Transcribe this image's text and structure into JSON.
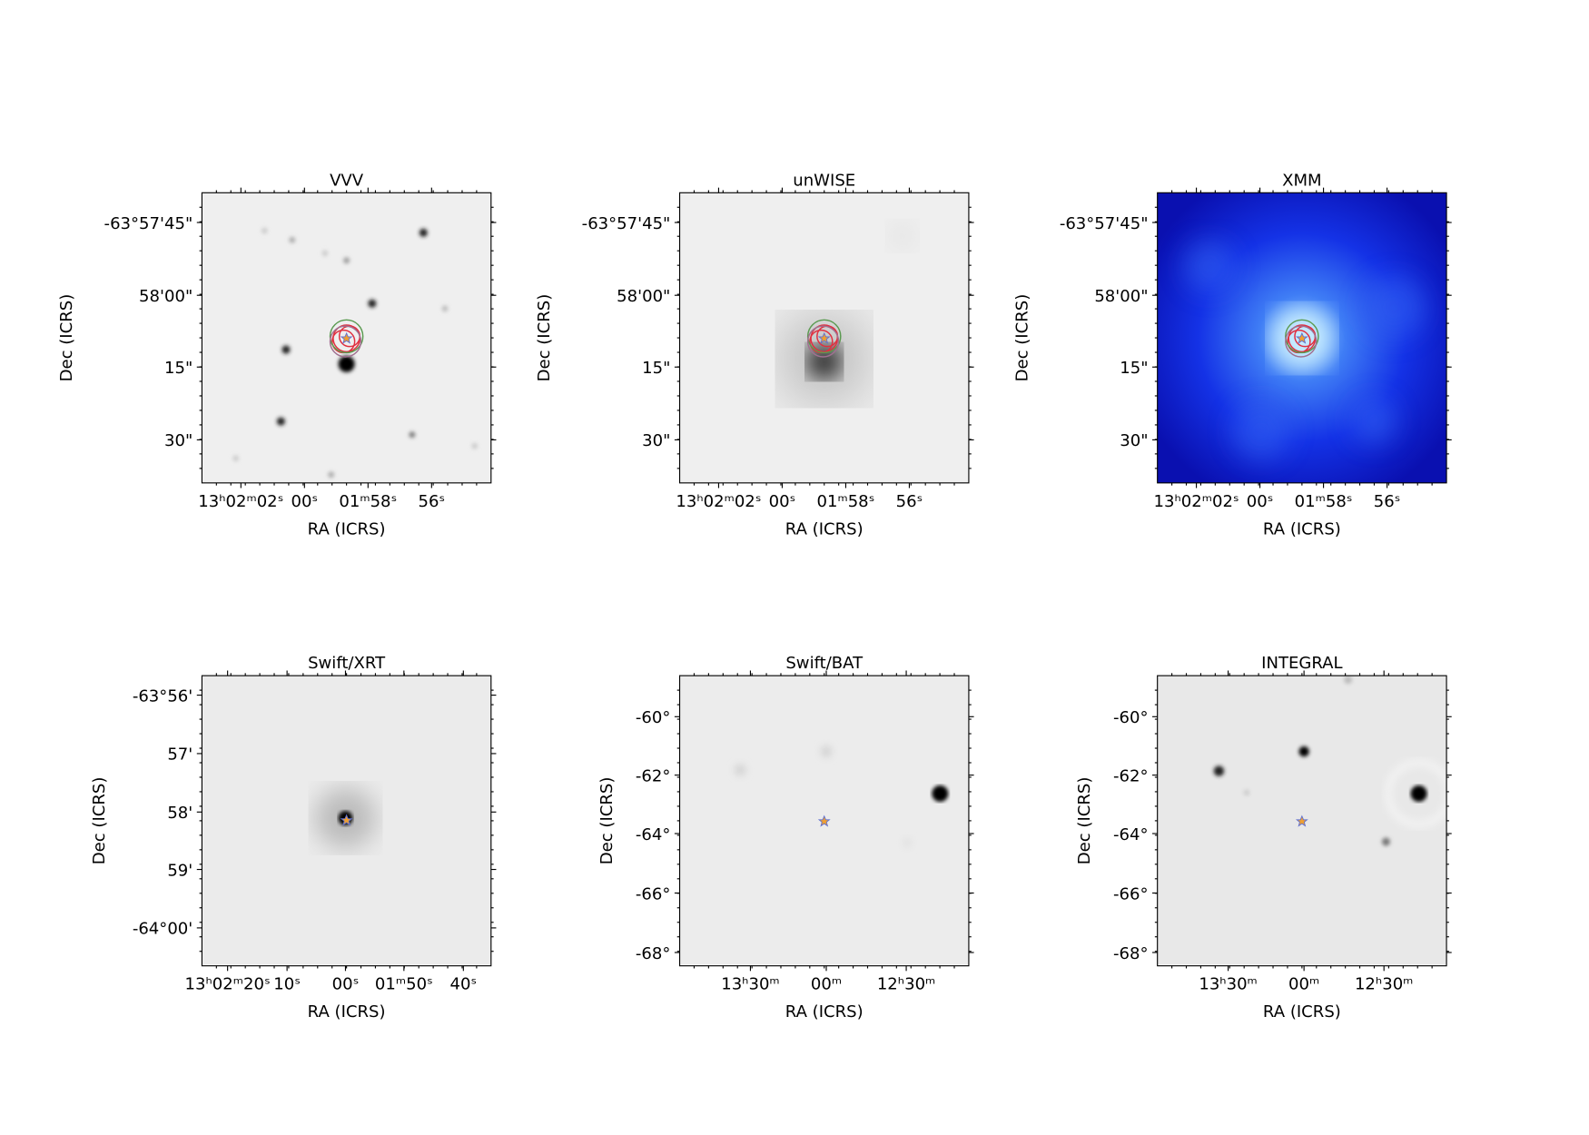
{
  "panels": [
    {
      "title": "VVV",
      "yticks": [
        "-63°57'45\"",
        "58'00\"",
        "15\"",
        "30\""
      ],
      "xticks": [
        "13ʰ02ᵐ02ˢ",
        "00ˢ",
        "01ᵐ58ˢ",
        "56ˢ"
      ],
      "xlabel": "RA (ICRS)",
      "ylabel": "Dec (ICRS)"
    },
    {
      "title": "unWISE",
      "yticks": [
        "-63°57'45\"",
        "58'00\"",
        "15\"",
        "30\""
      ],
      "xticks": [
        "13ʰ02ᵐ02ˢ",
        "00ˢ",
        "01ᵐ58ˢ",
        "56ˢ"
      ],
      "xlabel": "RA (ICRS)",
      "ylabel": "Dec (ICRS)"
    },
    {
      "title": "XMM",
      "yticks": [
        "-63°57'45\"",
        "58'00\"",
        "15\"",
        "30\""
      ],
      "xticks": [
        "13ʰ02ᵐ02ˢ",
        "00ˢ",
        "01ᵐ58ˢ",
        "56ˢ"
      ],
      "xlabel": "RA (ICRS)",
      "ylabel": "Dec (ICRS)"
    },
    {
      "title": "Swift/XRT",
      "yticks": [
        "-63°56'",
        "57'",
        "58'",
        "59'",
        "-64°00'"
      ],
      "xticks": [
        "13ʰ02ᵐ20ˢ",
        "10ˢ",
        "00ˢ",
        "01ᵐ50ˢ",
        "40ˢ"
      ],
      "xlabel": "RA (ICRS)",
      "ylabel": "Dec (ICRS)"
    },
    {
      "title": "Swift/BAT",
      "yticks": [
        "-60°",
        "-62°",
        "-64°",
        "-66°",
        "-68°"
      ],
      "xticks": [
        "13ʰ30ᵐ",
        "00ᵐ",
        "12ʰ30ᵐ"
      ],
      "xlabel": "RA (ICRS)",
      "ylabel": "Dec (ICRS)"
    },
    {
      "title": "INTEGRAL",
      "yticks": [
        "-60°",
        "-62°",
        "-64°",
        "-66°",
        "-68°"
      ],
      "xticks": [
        "13ʰ30ᵐ",
        "00ᵐ",
        "12ʰ30ᵐ"
      ],
      "xlabel": "RA (ICRS)",
      "ylabel": "Dec (ICRS)"
    }
  ]
}
